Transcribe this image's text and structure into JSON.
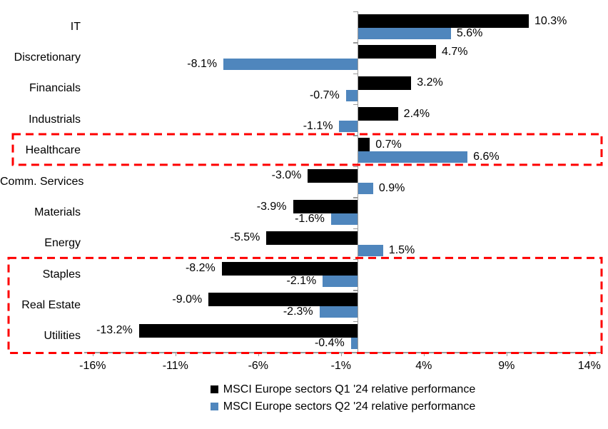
{
  "chart_data": {
    "type": "bar",
    "orientation": "horizontal",
    "title": "",
    "xlabel": "",
    "ylabel": "",
    "grid": false,
    "legend_position": "bottom-center",
    "categories": [
      "IT",
      "Discretionary",
      "Financials",
      "Industrials",
      "Healthcare",
      "Comm. Services",
      "Materials",
      "Energy",
      "Staples",
      "Real Estate",
      "Utilities"
    ],
    "series": [
      {
        "name": "MSCI Europe sectors Q1 '24 relative performance",
        "color": "#000000",
        "values": [
          10.3,
          4.7,
          3.2,
          2.4,
          0.7,
          -3.0,
          -3.9,
          -5.5,
          -8.2,
          -9.0,
          -13.2
        ]
      },
      {
        "name": "MSCI Europe sectors Q2 '24 relative performance",
        "color": "#4F86BD",
        "values": [
          5.6,
          -8.1,
          -0.7,
          -1.1,
          6.6,
          0.9,
          -1.6,
          1.5,
          -2.1,
          -2.3,
          -0.4
        ]
      }
    ],
    "value_labels": [
      "10.3%",
      "5.6%",
      "4.7%",
      "-8.1%",
      "3.2%",
      "-0.7%",
      "2.4%",
      "-1.1%",
      "0.7%",
      "6.6%",
      "-3.0%",
      "0.9%",
      "-3.9%",
      "-1.6%",
      "-5.5%",
      "1.5%",
      "-8.2%",
      "-2.1%",
      "-9.0%",
      "-2.3%",
      "-13.2%",
      "-0.4%"
    ],
    "x_tick_labels": [
      "-16%",
      "-11%",
      "-6%",
      "-1%",
      "4%",
      "9%",
      "14%"
    ],
    "x_tick_values": [
      -16,
      -11,
      -6,
      -1,
      4,
      9,
      14
    ],
    "xlim": [
      -16.5,
      14.75
    ],
    "axis_color": "#9a9a9a",
    "highlight_color": "#FE0000",
    "highlight_boxes": [
      {
        "categories": [
          "Healthcare"
        ],
        "style": "red-dashed"
      },
      {
        "categories": [
          "Staples",
          "Real Estate",
          "Utilities"
        ],
        "style": "red-dashed"
      }
    ]
  }
}
